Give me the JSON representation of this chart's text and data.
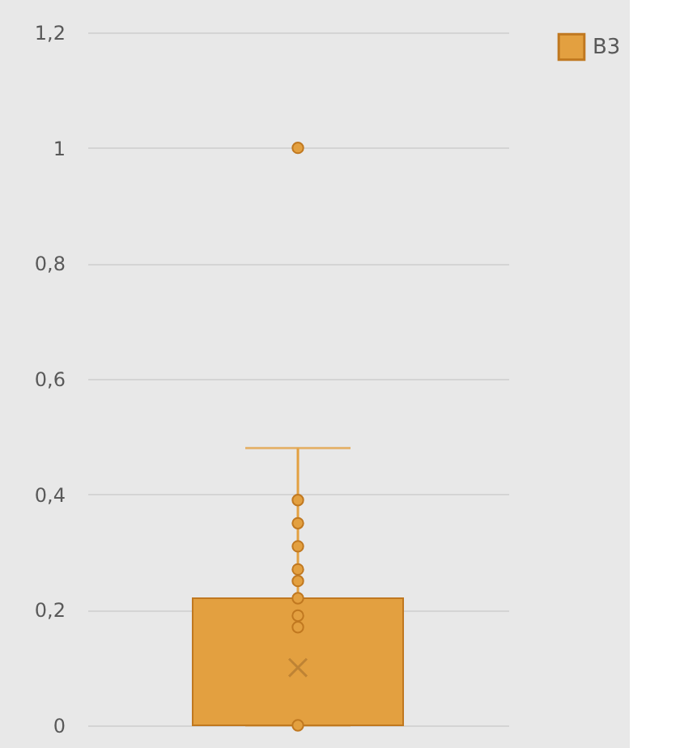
{
  "chart_data": {
    "type": "box",
    "categories": [
      null
    ],
    "series": [
      {
        "name": "B3",
        "color": "#e3a040",
        "boxes": [
          {
            "low": 0,
            "q1": 0,
            "median": 0,
            "q3": 0.22,
            "high": 0.48,
            "mean": 0.1,
            "outliers": [
              1
            ]
          }
        ]
      },
      {
        "type": "scatter",
        "color": "#e3a040",
        "x": [
          null,
          null,
          null,
          null,
          null,
          null,
          null,
          null,
          null
        ],
        "values": [
          0.39,
          0.35,
          0.31,
          0.27,
          0.25,
          0.22,
          0.19,
          0.17,
          0
        ]
      }
    ],
    "ylim": [
      0,
      1.2
    ],
    "yticks": [
      {
        "value": 0,
        "label": "0"
      },
      {
        "value": 0.2,
        "label": "0,2"
      },
      {
        "value": 0.4,
        "label": "0,4"
      },
      {
        "value": 0.6,
        "label": "0,6"
      },
      {
        "value": 0.8,
        "label": "0,8"
      },
      {
        "value": 1,
        "label": "1"
      },
      {
        "value": 1.2,
        "label": "1,2"
      }
    ],
    "grid": "y",
    "legend": "right",
    "marker": "circle"
  }
}
